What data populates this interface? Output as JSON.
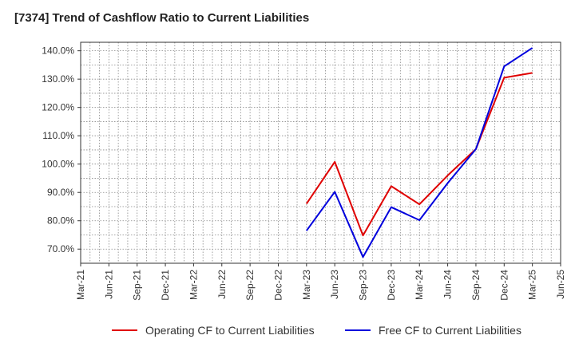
{
  "chart_data": {
    "type": "line",
    "title": "[7374]  Trend of Cashflow Ratio to Current Liabilities",
    "xlabel": "",
    "ylabel": "",
    "x_ticks": [
      "Mar-21",
      "Jun-21",
      "Sep-21",
      "Dec-21",
      "Mar-22",
      "Jun-22",
      "Sep-22",
      "Dec-22",
      "Mar-23",
      "Jun-23",
      "Sep-23",
      "Dec-23",
      "Mar-24",
      "Jun-24",
      "Sep-24",
      "Dec-24",
      "Mar-25",
      "Jun-25"
    ],
    "y_ticks": [
      "70.0%",
      "80.0%",
      "90.0%",
      "100.0%",
      "110.0%",
      "120.0%",
      "130.0%",
      "140.0%"
    ],
    "ylim": [
      65,
      143
    ],
    "grid": true,
    "legend_position": "bottom",
    "x": [
      "Mar-23",
      "Jun-23",
      "Sep-23",
      "Dec-23",
      "Mar-24",
      "Jun-24",
      "Sep-24",
      "Dec-24",
      "Mar-25"
    ],
    "series": [
      {
        "name": "Operating CF to Current Liabilities",
        "color": "#e00000",
        "values": [
          86.0,
          100.8,
          74.8,
          92.2,
          85.8,
          96.0,
          105.3,
          130.5,
          132.2
        ]
      },
      {
        "name": "Free CF to Current Liabilities",
        "color": "#0000dd",
        "values": [
          76.5,
          90.2,
          67.2,
          84.8,
          80.2,
          93.3,
          105.3,
          134.5,
          141.0
        ]
      }
    ]
  }
}
